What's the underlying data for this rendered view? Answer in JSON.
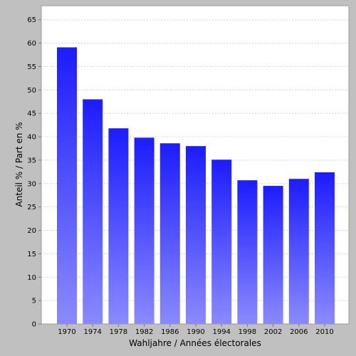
{
  "chart_data": {
    "type": "bar",
    "categories": [
      "1970",
      "1974",
      "1978",
      "1982",
      "1986",
      "1990",
      "1994",
      "1998",
      "2002",
      "2006",
      "2010"
    ],
    "values": [
      59.1,
      48.0,
      41.8,
      39.8,
      38.6,
      38.0,
      35.1,
      30.7,
      29.5,
      31.0,
      32.4
    ],
    "xlabel": "Wahljahre / Années électorales",
    "ylabel": "Anteil % / Part en %",
    "ylim": [
      0,
      68
    ],
    "yticks": [
      0,
      5,
      10,
      15,
      20,
      25,
      30,
      35,
      40,
      45,
      50,
      55,
      60,
      65
    ],
    "grid": true,
    "colors": {
      "bar_top": "#1c1cff",
      "bar_bottom": "#8a8aff",
      "plot_background": "#ffffff",
      "outer_background": "#c0c0c0",
      "grid": "#d8d8d8"
    }
  }
}
